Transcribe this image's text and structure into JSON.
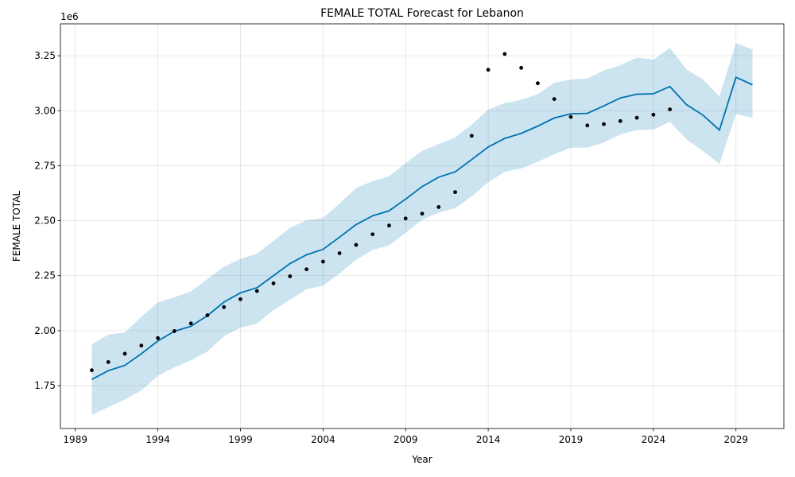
{
  "chart_data": {
    "type": "line",
    "title": "FEMALE TOTAL Forecast for Lebanon",
    "xlabel": "Year",
    "ylabel": "FEMALE TOTAL",
    "y_offset_label": "1e6",
    "grid": true,
    "xlim": [
      1988.1,
      2031.9
    ],
    "ylim": [
      1.555,
      3.395
    ],
    "x_ticks": [
      1989,
      1994,
      1999,
      2004,
      2009,
      2014,
      2019,
      2024,
      2029
    ],
    "x_tick_labels": [
      "1989",
      "1994",
      "1999",
      "2004",
      "2009",
      "2014",
      "2019",
      "2024",
      "2029"
    ],
    "y_ticks": [
      1.75,
      2.0,
      2.25,
      2.5,
      2.75,
      3.0,
      3.25
    ],
    "y_tick_labels": [
      "1.75",
      "2.00",
      "2.25",
      "2.50",
      "2.75",
      "3.00",
      "3.25"
    ],
    "colors": {
      "forecast": "#0072b2",
      "interval": "#0072b2",
      "actual": "#000000"
    },
    "actual": {
      "x": [
        1990,
        1991,
        1992,
        1993,
        1994,
        1995,
        1996,
        1997,
        1998,
        1999,
        2000,
        2001,
        2002,
        2003,
        2004,
        2005,
        2006,
        2007,
        2008,
        2009,
        2010,
        2011,
        2012,
        2013,
        2014,
        2015,
        2016,
        2017,
        2018,
        2019,
        2020,
        2021,
        2022,
        2023,
        2024,
        2025
      ],
      "y": [
        1.82,
        1.857,
        1.895,
        1.932,
        1.966,
        1.998,
        2.033,
        2.07,
        2.107,
        2.143,
        2.18,
        2.215,
        2.247,
        2.279,
        2.314,
        2.352,
        2.39,
        2.438,
        2.478,
        2.51,
        2.532,
        2.562,
        2.63,
        2.886,
        3.186,
        3.258,
        3.195,
        3.125,
        3.053,
        2.972,
        2.933,
        2.939,
        2.953,
        2.968,
        2.982,
        3.006
      ]
    },
    "forecast": {
      "x": [
        1990,
        1991,
        1992,
        1993,
        1994,
        1995,
        1996,
        1997,
        1998,
        1999,
        2000,
        2001,
        2002,
        2003,
        2004,
        2005,
        2006,
        2007,
        2008,
        2009,
        2010,
        2011,
        2012,
        2013,
        2014,
        2015,
        2016,
        2017,
        2018,
        2019,
        2020,
        2021,
        2022,
        2023,
        2024,
        2025,
        2026,
        2027,
        2028,
        2029,
        2030
      ],
      "yhat": [
        1.778,
        1.818,
        1.842,
        1.895,
        1.953,
        1.997,
        2.02,
        2.068,
        2.13,
        2.172,
        2.195,
        2.25,
        2.305,
        2.345,
        2.37,
        2.425,
        2.482,
        2.522,
        2.545,
        2.598,
        2.655,
        2.698,
        2.722,
        2.778,
        2.835,
        2.874,
        2.897,
        2.93,
        2.967,
        2.986,
        2.988,
        3.022,
        3.058,
        3.075,
        3.077,
        3.11,
        3.028,
        2.98,
        2.912,
        3.152,
        3.118
      ],
      "yhat_lower": [
        1.617,
        1.652,
        1.687,
        1.728,
        1.795,
        1.833,
        1.865,
        1.905,
        1.975,
        2.013,
        2.032,
        2.093,
        2.14,
        2.188,
        2.205,
        2.26,
        2.322,
        2.367,
        2.388,
        2.445,
        2.505,
        2.537,
        2.557,
        2.61,
        2.675,
        2.722,
        2.737,
        2.768,
        2.802,
        2.832,
        2.832,
        2.855,
        2.892,
        2.912,
        2.914,
        2.95,
        2.87,
        2.817,
        2.758,
        2.985,
        2.968
      ],
      "yhat_upper": [
        1.937,
        1.982,
        1.992,
        2.063,
        2.128,
        2.152,
        2.178,
        2.235,
        2.29,
        2.327,
        2.35,
        2.408,
        2.468,
        2.502,
        2.512,
        2.578,
        2.648,
        2.68,
        2.702,
        2.762,
        2.818,
        2.848,
        2.878,
        2.937,
        3.005,
        3.035,
        3.05,
        3.075,
        3.127,
        3.142,
        3.147,
        3.183,
        3.207,
        3.242,
        3.232,
        3.285,
        3.188,
        3.142,
        3.065,
        3.308,
        3.278
      ]
    }
  }
}
